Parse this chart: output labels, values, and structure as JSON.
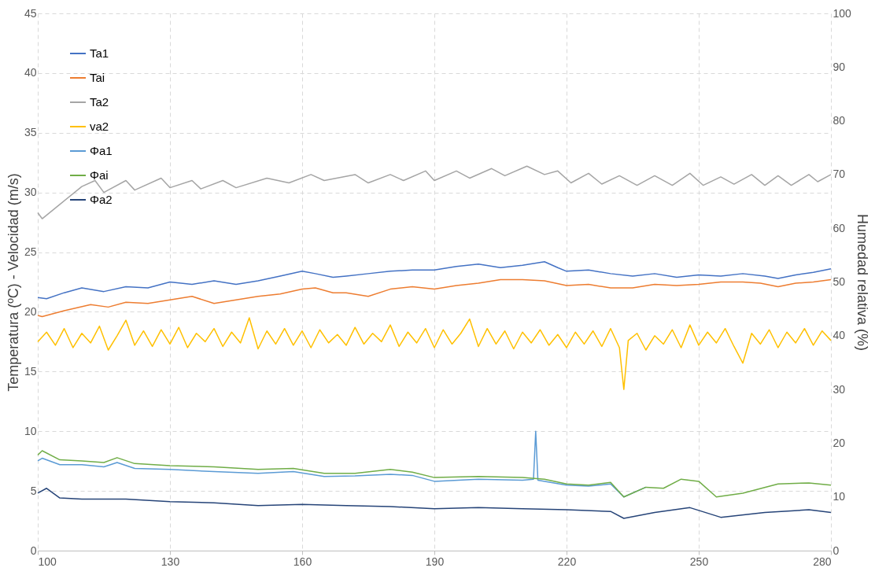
{
  "chart_data": {
    "type": "line",
    "xlabel": null,
    "ylabel": "Temperatura (ºC) - Velocidad (m/s)",
    "y2label": "Humedad relativa (%)",
    "xlim": [
      100,
      280
    ],
    "xticks": [
      100,
      130,
      160,
      190,
      220,
      250,
      280
    ],
    "ylim": [
      0,
      45
    ],
    "yticks": [
      0,
      5,
      10,
      15,
      20,
      25,
      30,
      35,
      40,
      45
    ],
    "y2lim": [
      0,
      100
    ],
    "y2ticks": [
      0,
      10,
      20,
      30,
      40,
      50,
      60,
      70,
      80,
      90,
      100
    ],
    "grid": true,
    "legend": "top left",
    "line_style": "solid",
    "marker": "none",
    "series": [
      {
        "name": "Ta1",
        "color": "#4472c4",
        "x": [
          100,
          102,
          106,
          110,
          115,
          120,
          125,
          130,
          135,
          140,
          145,
          150,
          155,
          160,
          163,
          167,
          170,
          175,
          180,
          185,
          190,
          195,
          200,
          205,
          210,
          215,
          218,
          220,
          225,
          230,
          235,
          240,
          245,
          250,
          255,
          260,
          265,
          268,
          272,
          276,
          280
        ],
        "values": [
          21.2,
          21.1,
          21.6,
          22.0,
          21.7,
          22.1,
          22.0,
          22.5,
          22.3,
          22.6,
          22.3,
          22.6,
          23.0,
          23.4,
          23.2,
          22.9,
          23.0,
          23.2,
          23.4,
          23.5,
          23.5,
          23.8,
          24.0,
          23.7,
          23.9,
          24.2,
          23.7,
          23.4,
          23.5,
          23.2,
          23.0,
          23.2,
          22.9,
          23.1,
          23.0,
          23.2,
          23.0,
          22.8,
          23.1,
          23.3,
          23.6
        ]
      },
      {
        "name": "Tai",
        "color": "#ed7d31",
        "x": [
          100,
          101,
          106,
          112,
          116,
          120,
          125,
          130,
          135,
          140,
          145,
          150,
          155,
          160,
          163,
          167,
          170,
          175,
          180,
          185,
          190,
          195,
          200,
          205,
          210,
          215,
          220,
          225,
          230,
          235,
          240,
          245,
          250,
          255,
          260,
          264,
          268,
          272,
          276,
          280
        ],
        "values": [
          19.7,
          19.6,
          20.1,
          20.6,
          20.4,
          20.8,
          20.7,
          21.0,
          21.3,
          20.7,
          21.0,
          21.3,
          21.5,
          21.9,
          22.0,
          21.6,
          21.6,
          21.3,
          21.9,
          22.1,
          21.9,
          22.2,
          22.4,
          22.7,
          22.7,
          22.6,
          22.2,
          22.3,
          22.0,
          22.0,
          22.3,
          22.2,
          22.3,
          22.5,
          22.5,
          22.4,
          22.1,
          22.4,
          22.5,
          22.7
        ]
      },
      {
        "name": "Ta2",
        "color": "#a5a5a5",
        "x": [
          100,
          101,
          105,
          110,
          113,
          115,
          120,
          122,
          128,
          130,
          135,
          137,
          142,
          145,
          152,
          157,
          162,
          165,
          172,
          175,
          180,
          183,
          188,
          190,
          195,
          198,
          203,
          206,
          211,
          215,
          218,
          221,
          225,
          228,
          232,
          236,
          240,
          244,
          248,
          251,
          255,
          258,
          262,
          265,
          268,
          271,
          275,
          277,
          280
        ],
        "values": [
          28.3,
          27.8,
          29.0,
          30.5,
          31.0,
          30.0,
          31.0,
          30.2,
          31.2,
          30.4,
          31.0,
          30.3,
          31.0,
          30.4,
          31.2,
          30.8,
          31.5,
          31.0,
          31.5,
          30.8,
          31.5,
          31.0,
          31.8,
          31.0,
          31.8,
          31.2,
          32.0,
          31.4,
          32.2,
          31.5,
          31.8,
          30.8,
          31.6,
          30.7,
          31.4,
          30.6,
          31.4,
          30.6,
          31.6,
          30.6,
          31.3,
          30.7,
          31.5,
          30.6,
          31.4,
          30.6,
          31.5,
          30.9,
          31.5
        ]
      },
      {
        "name": "va2",
        "color": "#ffc000",
        "x": [
          100,
          102,
          104,
          106,
          108,
          110,
          112,
          114,
          116,
          118,
          120,
          122,
          124,
          126,
          128,
          130,
          132,
          134,
          136,
          138,
          140,
          142,
          144,
          146,
          148,
          150,
          152,
          154,
          156,
          158,
          160,
          162,
          164,
          166,
          168,
          170,
          172,
          174,
          176,
          178,
          180,
          182,
          184,
          186,
          188,
          190,
          192,
          194,
          196,
          198,
          200,
          202,
          204,
          206,
          208,
          210,
          212,
          214,
          216,
          218,
          220,
          222,
          224,
          226,
          228,
          230,
          232,
          233,
          234,
          236,
          238,
          240,
          242,
          244,
          246,
          248,
          250,
          252,
          254,
          256,
          258,
          260,
          262,
          264,
          266,
          268,
          270,
          272,
          274,
          276,
          278,
          280
        ],
        "values": [
          17.5,
          18.3,
          17.2,
          18.6,
          17.0,
          18.2,
          17.4,
          18.8,
          16.8,
          18.0,
          19.3,
          17.2,
          18.4,
          17.1,
          18.5,
          17.3,
          18.7,
          17.0,
          18.2,
          17.5,
          18.6,
          17.1,
          18.3,
          17.4,
          19.5,
          16.9,
          18.4,
          17.3,
          18.6,
          17.2,
          18.4,
          17.0,
          18.5,
          17.4,
          18.1,
          17.2,
          18.7,
          17.3,
          18.2,
          17.5,
          18.9,
          17.1,
          18.3,
          17.4,
          18.6,
          17.0,
          18.5,
          17.3,
          18.2,
          19.4,
          17.1,
          18.6,
          17.3,
          18.4,
          16.9,
          18.3,
          17.4,
          18.5,
          17.2,
          18.1,
          17.0,
          18.3,
          17.3,
          18.4,
          17.1,
          18.6,
          17.0,
          13.5,
          17.6,
          18.2,
          16.8,
          18.0,
          17.3,
          18.5,
          17.0,
          18.9,
          17.2,
          18.3,
          17.4,
          18.6,
          17.1,
          15.7,
          18.2,
          17.3,
          18.5,
          17.0,
          18.3,
          17.4,
          18.6,
          17.2,
          18.4,
          17.6
        ]
      },
      {
        "name": "Φa1",
        "color": "#5b9bd5",
        "axis": "y2",
        "x": [
          100,
          101,
          105,
          110,
          115,
          118,
          122,
          130,
          140,
          150,
          158,
          165,
          172,
          180,
          185,
          190,
          200,
          210,
          212.5,
          213,
          213.5,
          220,
          225,
          230,
          233,
          238
        ],
        "values": [
          16.7,
          17.2,
          16.0,
          16.0,
          15.6,
          16.4,
          15.3,
          15.1,
          14.7,
          14.4,
          14.7,
          13.8,
          13.9,
          14.2,
          14.0,
          12.9,
          13.3,
          13.1,
          13.3,
          22.2,
          13.1,
          12.2,
          12.0,
          12.4,
          10.0,
          11.8
        ]
      },
      {
        "name": "Φai",
        "color": "#70ad47",
        "axis": "y2",
        "x": [
          100,
          101,
          105,
          110,
          115,
          118,
          122,
          130,
          140,
          150,
          158,
          165,
          172,
          180,
          185,
          190,
          200,
          210,
          215,
          220,
          225,
          230,
          233,
          238,
          242,
          246,
          250,
          254,
          260,
          268,
          275,
          280
        ],
        "values": [
          17.8,
          18.6,
          16.9,
          16.7,
          16.4,
          17.3,
          16.2,
          15.8,
          15.6,
          15.1,
          15.3,
          14.4,
          14.4,
          15.1,
          14.6,
          13.6,
          13.8,
          13.6,
          13.3,
          12.4,
          12.2,
          12.7,
          10.0,
          11.8,
          11.6,
          13.3,
          12.9,
          10.0,
          10.7,
          12.4,
          12.6,
          12.2
        ]
      },
      {
        "name": "Φa2",
        "color": "#264478",
        "axis": "y2",
        "x": [
          100,
          102,
          105,
          110,
          120,
          130,
          140,
          150,
          160,
          170,
          180,
          190,
          200,
          210,
          220,
          230,
          233,
          240,
          248,
          255,
          265,
          275,
          280
        ],
        "values": [
          10.7,
          11.6,
          9.8,
          9.6,
          9.6,
          9.1,
          8.9,
          8.4,
          8.6,
          8.4,
          8.2,
          7.8,
          8.0,
          7.8,
          7.6,
          7.3,
          6.0,
          7.1,
          8.0,
          6.2,
          7.1,
          7.6,
          7.1
        ]
      }
    ]
  }
}
